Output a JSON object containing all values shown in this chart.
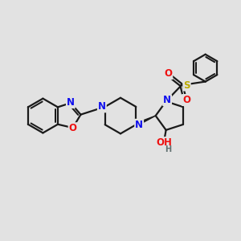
{
  "bg_color": "#e2e2e2",
  "bond_color": "#1a1a1a",
  "bond_width": 1.6,
  "atom_colors": {
    "N": "#1010ee",
    "O": "#ee1010",
    "S": "#bbaa00",
    "H": "#607070",
    "C": "#1a1a1a"
  },
  "font_size_atom": 8.5,
  "font_size_h": 7.0
}
